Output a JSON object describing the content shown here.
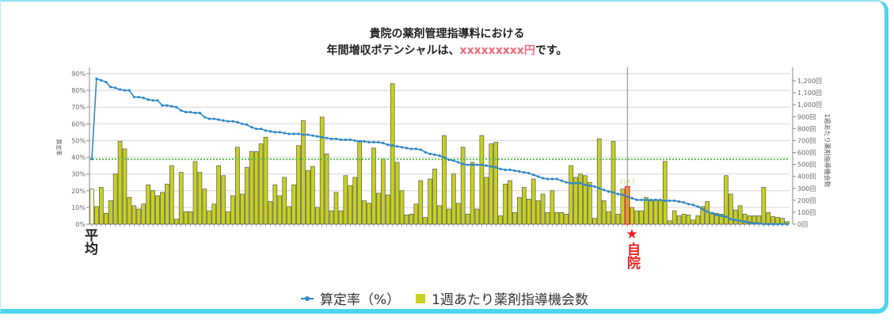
{
  "title": {
    "line1": "貴院の薬剤管理指導料における",
    "line2_prefix": "年間増収ポテンシャルは、",
    "line2_amount": "xxxxxxxxx円",
    "line2_suffix": "です。"
  },
  "colors": {
    "line": "#2f88c8",
    "bar": "#c8d21c",
    "bar_avg": "#f2f5c8",
    "bar_self_outline": "#ff2a2a",
    "avg_line": "#5cc04a",
    "accent": "#f06a7a",
    "frame": "#4ed4f0"
  },
  "markers": {
    "average": "平均",
    "self": "★自院"
  },
  "legend": {
    "line": "算定率（%）",
    "bar": "1週あたり薬剤指導機会数"
  },
  "chart_data": {
    "type": "bar+line",
    "y_left": {
      "label": "算定率",
      "ylim": [
        0,
        90
      ],
      "ticks": [
        "0%",
        "10%",
        "20%",
        "30%",
        "40%",
        "50%",
        "60%",
        "70%",
        "80%",
        "90%"
      ]
    },
    "y_right": {
      "label": "1週あたり薬剤指導機会数",
      "ylim": [
        0,
        1260
      ],
      "ticks": [
        "0回",
        "100回",
        "200回",
        "300回",
        "400回",
        "500回",
        "600回",
        "700回",
        "800回",
        "900回",
        "1,000回",
        "1,100回",
        "1,200回"
      ]
    },
    "grid": true,
    "average_rate": 38.8,
    "average_index": 0,
    "self_index": 114,
    "self_bar_label": "314.5",
    "series": [
      {
        "name": "算定率（%）",
        "axis": "left",
        "values": [
          39,
          87,
          86,
          85,
          82,
          81.5,
          80.5,
          80,
          80,
          76,
          76,
          75.5,
          74.5,
          74,
          74,
          71,
          71,
          70.5,
          70,
          68,
          67,
          67,
          66.5,
          66.5,
          64,
          63,
          63,
          62.5,
          62,
          61.5,
          61.5,
          61,
          60,
          59.5,
          58,
          57,
          57,
          56,
          55.5,
          55,
          55,
          54.5,
          54,
          54,
          54,
          53.5,
          53.5,
          53,
          52.5,
          52,
          51.5,
          51,
          51,
          50.5,
          50.5,
          50.5,
          50,
          49.5,
          49.5,
          49,
          49,
          49,
          48.5,
          47.5,
          47,
          46.5,
          46,
          45.5,
          45,
          45,
          44.5,
          43,
          42,
          41.5,
          41,
          40,
          38.5,
          38,
          37,
          36,
          35.5,
          35.5,
          35.5,
          35.5,
          35,
          34.5,
          34,
          33,
          32.5,
          32.5,
          32,
          31.5,
          31,
          30.5,
          29.5,
          28.5,
          27.5,
          27,
          27,
          27,
          26,
          25,
          24.5,
          24.5,
          24.5,
          23.5,
          23,
          22.5,
          21.5,
          20.5,
          19.5,
          19,
          18,
          17.5,
          16.5,
          15.5,
          14.5,
          14.5,
          14.5,
          14.5,
          14.5,
          14.5,
          14,
          14,
          14,
          13.5,
          13,
          12,
          11.5,
          10.5,
          9,
          7.5,
          6.5,
          5.5,
          5,
          4.5,
          3,
          2.5,
          2,
          1.5,
          1,
          0.5,
          0.5,
          0,
          0,
          0,
          0,
          0,
          0
        ]
      },
      {
        "name": "1週あたり薬剤指導機会数",
        "axis": "right",
        "values": [
          294,
          147,
          308,
          91,
          196,
          420,
          693,
          630,
          224,
          154,
          126,
          168,
          329,
          280,
          238,
          266,
          336,
          490,
          42,
          434,
          105,
          105,
          525,
          434,
          294,
          112,
          168,
          490,
          406,
          105,
          238,
          644,
          252,
          476,
          609,
          609,
          672,
          728,
          189,
          329,
          238,
          392,
          147,
          329,
          658,
          868,
          448,
          483,
          140,
          896,
          588,
          112,
          266,
          112,
          406,
          322,
          392,
          700,
          196,
          175,
          637,
          259,
          546,
          245,
          1176,
          518,
          280,
          77,
          84,
          168,
          364,
          56,
          378,
          462,
          154,
          742,
          126,
          420,
          175,
          644,
          84,
          518,
          126,
          742,
          392,
          672,
          686,
          70,
          336,
          364,
          98,
          224,
          308,
          210,
          378,
          196,
          252,
          98,
          280,
          98,
          98,
          84,
          490,
          392,
          420,
          406,
          350,
          49,
          714,
          196,
          105,
          693,
          84,
          294,
          314.5,
          140,
          112,
          112,
          224,
          196,
          203,
          203,
          525,
          28,
          112,
          70,
          84,
          77,
          35,
          70,
          147,
          189,
          98,
          91,
          84,
          406,
          252,
          119,
          154,
          84,
          70,
          70,
          70,
          308,
          98,
          63,
          56,
          49,
          21
        ]
      }
    ]
  }
}
